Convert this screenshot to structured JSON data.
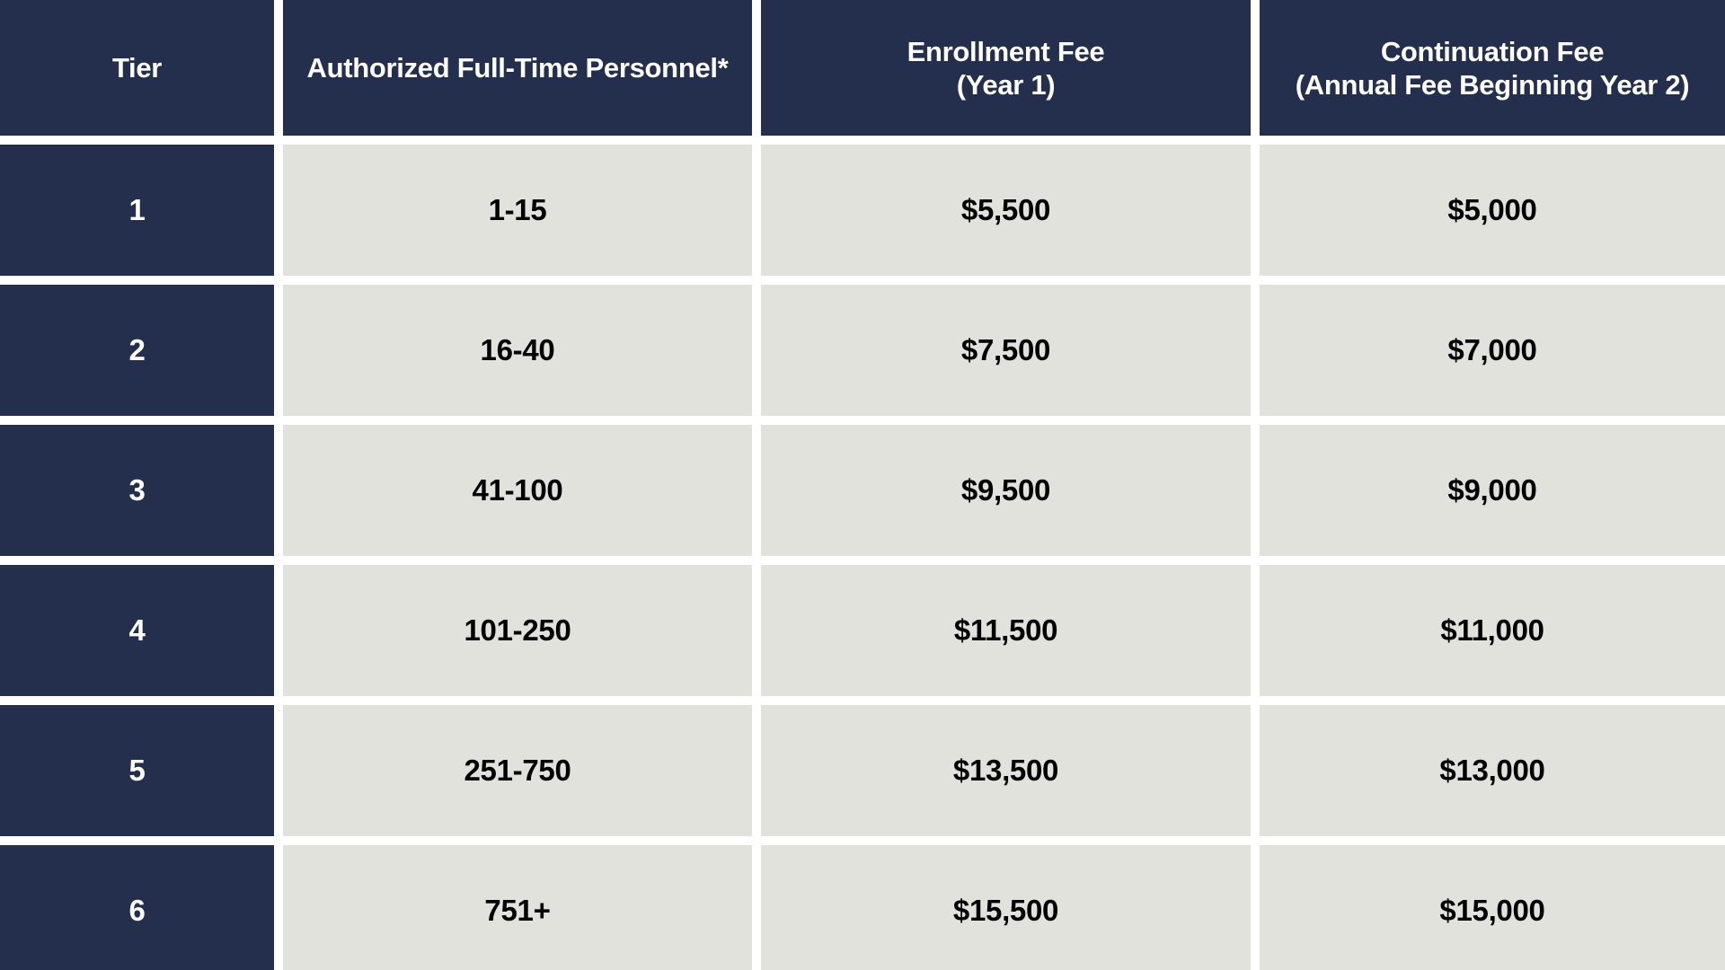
{
  "colors": {
    "header_bg": "#232F4D",
    "cell_bg": "#E1E2DC",
    "header_text": "#FFFFFF",
    "cell_text": "#000000",
    "gap_color": "#FFFFFF"
  },
  "table": {
    "columns": [
      {
        "lines": [
          "Tier"
        ]
      },
      {
        "lines": [
          "Authorized Full-Time Personnel*"
        ]
      },
      {
        "lines": [
          "Enrollment Fee",
          "(Year 1)"
        ]
      },
      {
        "lines": [
          "Continuation Fee",
          "(Annual Fee Beginning Year 2)"
        ]
      }
    ],
    "rows": [
      {
        "tier": "1",
        "personnel": "1-15",
        "enrollment_fee": "$5,500",
        "continuation_fee": "$5,000"
      },
      {
        "tier": "2",
        "personnel": "16-40",
        "enrollment_fee": "$7,500",
        "continuation_fee": "$7,000"
      },
      {
        "tier": "3",
        "personnel": "41-100",
        "enrollment_fee": "$9,500",
        "continuation_fee": "$9,000"
      },
      {
        "tier": "4",
        "personnel": "101-250",
        "enrollment_fee": "$11,500",
        "continuation_fee": "$11,000"
      },
      {
        "tier": "5",
        "personnel": "251-750",
        "enrollment_fee": "$13,500",
        "continuation_fee": "$13,000"
      },
      {
        "tier": "6",
        "personnel": "751+",
        "enrollment_fee": "$15,500",
        "continuation_fee": "$15,000"
      }
    ]
  },
  "chart_data": {
    "type": "table",
    "title": "",
    "columns": [
      "Tier",
      "Authorized Full-Time Personnel*",
      "Enrollment Fee (Year 1)",
      "Continuation Fee (Annual Fee Beginning Year 2)"
    ],
    "rows": [
      [
        "1",
        "1-15",
        "$5,500",
        "$5,000"
      ],
      [
        "2",
        "16-40",
        "$7,500",
        "$7,000"
      ],
      [
        "3",
        "41-100",
        "$9,500",
        "$9,000"
      ],
      [
        "4",
        "101-250",
        "$11,500",
        "$11,000"
      ],
      [
        "5",
        "251-750",
        "$13,500",
        "$13,000"
      ],
      [
        "6",
        "751+",
        "$15,500",
        "$15,000"
      ]
    ]
  }
}
